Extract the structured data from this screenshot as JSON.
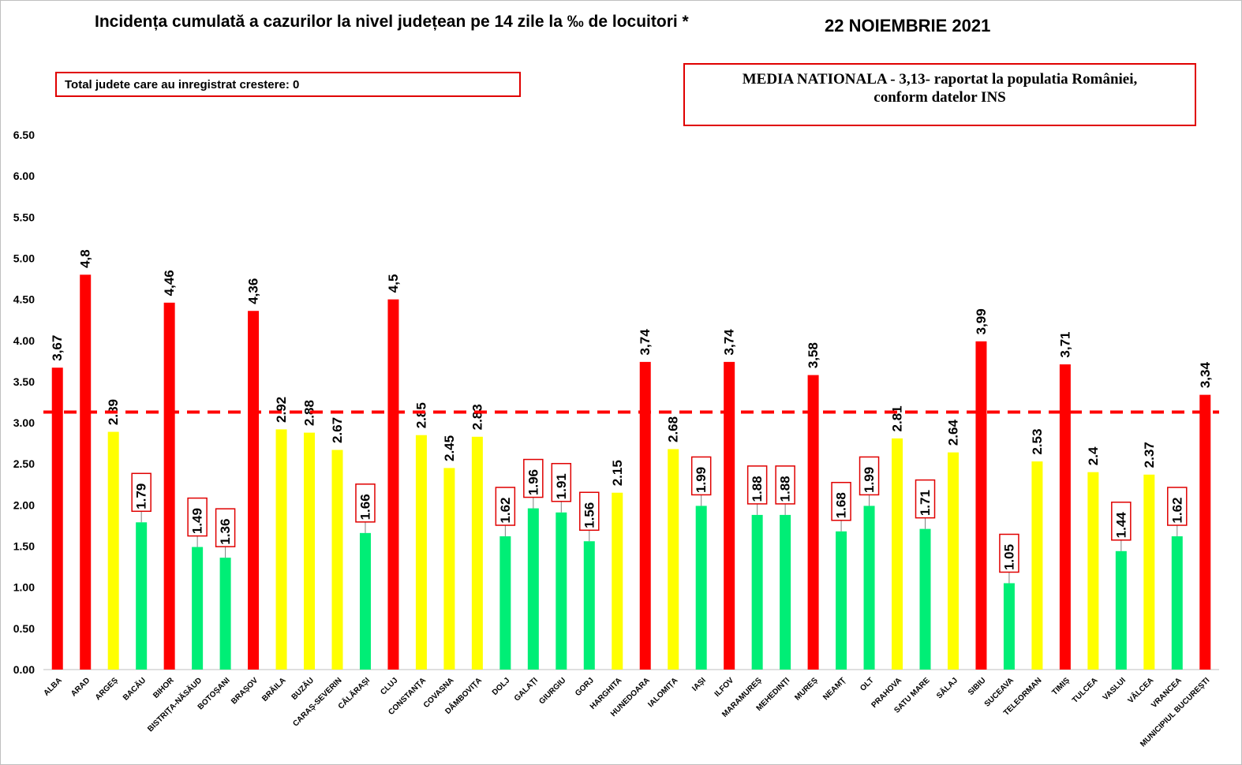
{
  "title": "Incidența cumulată a cazurilor la nivel județean pe 14 zile la ‰ de locuitori *",
  "date": "22 NOIEMBRIE 2021",
  "increase_note": "Total judete care au inregistrat crestere: 0",
  "national_average_line1": "MEDIA NATIONALA - 3,13-  raportat la populatia României,",
  "national_average_line2": "conform datelor INS",
  "colors": {
    "red": "#ff0000",
    "yellow": "#ffff00",
    "green": "#00ee76",
    "average_line": "#ff0000",
    "label_box_border": "#e00000"
  },
  "chart_data": {
    "type": "bar",
    "ylim": [
      0,
      6.5
    ],
    "y_ticks": [
      "0.00",
      "0.50",
      "1.00",
      "1.50",
      "2.00",
      "2.50",
      "3.00",
      "3.50",
      "4.00",
      "4.50",
      "5.00",
      "5.50",
      "6.00",
      "6.50"
    ],
    "reference_line": 3.13,
    "grid": false,
    "categories": [
      "ALBA",
      "ARAD",
      "ARGEȘ",
      "BACĂU",
      "BIHOR",
      "BISTRIȚA-NĂSĂUD",
      "BOTOȘANI",
      "BRAȘOV",
      "BRĂILA",
      "BUZĂU",
      "CARAȘ-SEVERIN",
      "CĂLĂRAȘI",
      "CLUJ",
      "CONSTANȚA",
      "COVASNA",
      "DÂMBOVIȚA",
      "DOLJ",
      "GALAȚI",
      "GIURGIU",
      "GORJ",
      "HARGHITA",
      "HUNEDOARA",
      "IALOMIȚA",
      "IAȘI",
      "ILFOV",
      "MARAMUREȘ",
      "MEHEDINȚI",
      "MUREȘ",
      "NEAMȚ",
      "OLT",
      "PRAHOVA",
      "SATU MARE",
      "SĂLAJ",
      "SIBIU",
      "SUCEAVA",
      "TELEORMAN",
      "TIMIȘ",
      "TULCEA",
      "VASLUI",
      "VÂLCEA",
      "VRANCEA",
      "MUNICIPIUL BUCUREȘTI"
    ],
    "values": [
      3.67,
      4.8,
      2.89,
      1.79,
      4.46,
      1.49,
      1.36,
      4.36,
      2.92,
      2.88,
      2.67,
      1.66,
      4.5,
      2.85,
      2.45,
      2.83,
      1.62,
      1.96,
      1.91,
      1.56,
      2.15,
      3.74,
      2.68,
      1.99,
      3.74,
      1.88,
      1.88,
      3.58,
      1.68,
      1.99,
      2.81,
      1.71,
      2.64,
      3.99,
      1.05,
      2.53,
      3.71,
      2.4,
      1.44,
      2.37,
      1.62,
      3.34
    ],
    "value_labels": [
      "3,67",
      "4,8",
      "2.89",
      "1.79",
      "4,46",
      "1.49",
      "1.36",
      "4,36",
      "2.92",
      "2.88",
      "2.67",
      "1.66",
      "4,5",
      "2.85",
      "2.45",
      "2.83",
      "1.62",
      "1.96",
      "1.91",
      "1.56",
      "2.15",
      "3,74",
      "2.68",
      "1.99",
      "3,74",
      "1.88",
      "1.88",
      "3,58",
      "1.68",
      "1.99",
      "2.81",
      "1.71",
      "2.64",
      "3,99",
      "1.05",
      "2.53",
      "3,71",
      "2.4",
      "1.44",
      "2.37",
      "1.62",
      "3,34"
    ],
    "bar_colors": [
      "red",
      "red",
      "yellow",
      "green",
      "red",
      "green",
      "green",
      "red",
      "yellow",
      "yellow",
      "yellow",
      "green",
      "red",
      "yellow",
      "yellow",
      "yellow",
      "green",
      "green",
      "green",
      "green",
      "yellow",
      "red",
      "yellow",
      "green",
      "red",
      "green",
      "green",
      "red",
      "green",
      "green",
      "yellow",
      "green",
      "yellow",
      "red",
      "green",
      "yellow",
      "red",
      "yellow",
      "green",
      "yellow",
      "green",
      "red"
    ]
  }
}
